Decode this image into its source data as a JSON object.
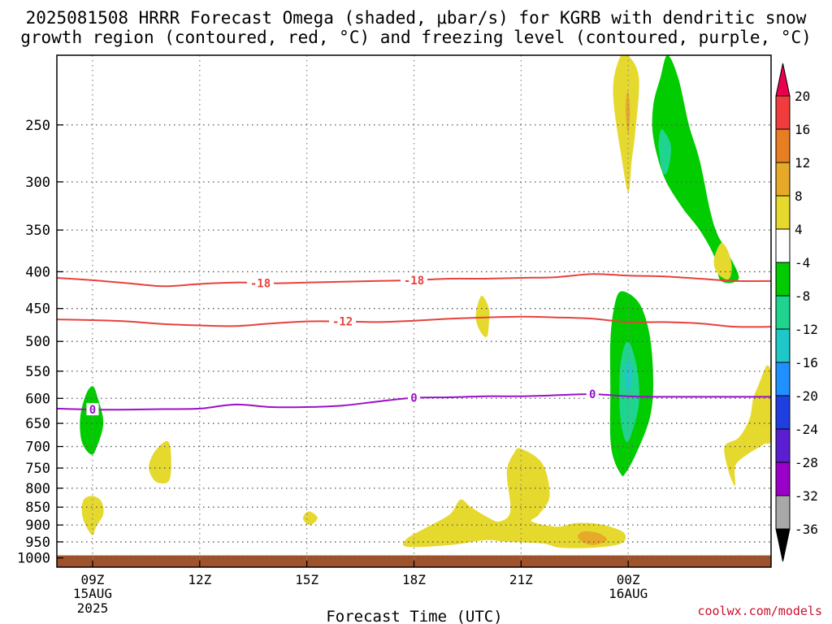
{
  "title_line1": "2025081508 HRRR Forecast Omega (shaded, μbar/s) for KGRB with dendritic snow",
  "title_line2": "growth region (contoured, red, °C) and freezing level (contoured, purple, °C)",
  "credit": "coolwx.com/models",
  "chart_data": {
    "type": "time-height cross-section (filled contour + contour lines)",
    "title": "2025081508 HRRR Forecast Omega (shaded, μbar/s) for KGRB with dendritic snow growth region (contoured, red, °C) and freezing level (contoured, purple, °C)",
    "xlabel": "Forecast Time (UTC)",
    "ylabel": "",
    "x_range_hours_utc": [
      8,
      28
    ],
    "y_range_hPa": [
      200,
      1030
    ],
    "y_scale": "log-pressure",
    "grid": "dotted",
    "x_ticks": [
      {
        "hour": 9,
        "label": "09Z",
        "sub1": "15AUG",
        "sub2": "2025"
      },
      {
        "hour": 12,
        "label": "12Z",
        "sub1": "",
        "sub2": ""
      },
      {
        "hour": 15,
        "label": "15Z",
        "sub1": "",
        "sub2": ""
      },
      {
        "hour": 18,
        "label": "18Z",
        "sub1": "",
        "sub2": ""
      },
      {
        "hour": 21,
        "label": "21Z",
        "sub1": "",
        "sub2": ""
      },
      {
        "hour": 24,
        "label": "00Z",
        "sub1": "16AUG",
        "sub2": ""
      }
    ],
    "y_ticks": [
      250,
      300,
      350,
      400,
      450,
      500,
      550,
      600,
      650,
      700,
      750,
      800,
      850,
      900,
      950,
      1000
    ],
    "surface_hPa": 992,
    "surface_color": "#a0522d",
    "colorbar": {
      "labels": [
        "20",
        "16",
        "12",
        "8",
        "4",
        "-4",
        "-8",
        "-12",
        "-16",
        "-20",
        "-24",
        "-28",
        "-32",
        "-36"
      ],
      "colors": [
        "#e8004f",
        "#f03c3c",
        "#e87e22",
        "#e6a929",
        "#e6d92e",
        "#ffffff",
        "#00cc00",
        "#1ed48f",
        "#1fc8c8",
        "#1e90ff",
        "#1f3fe0",
        "#5a1fd0",
        "#9a00c8",
        "#a8a8a8",
        "#000000"
      ]
    },
    "contour_lines": [
      {
        "name": "-18",
        "color": "#e8413c",
        "points": [
          [
            8,
            408
          ],
          [
            9,
            411
          ],
          [
            10,
            415
          ],
          [
            11,
            419
          ],
          [
            12,
            416
          ],
          [
            13,
            414
          ],
          [
            14,
            415
          ],
          [
            15,
            414
          ],
          [
            16,
            413
          ],
          [
            17,
            412
          ],
          [
            18,
            411
          ],
          [
            19,
            409
          ],
          [
            20,
            409
          ],
          [
            21,
            408
          ],
          [
            22,
            407
          ],
          [
            23,
            403
          ],
          [
            24,
            405
          ],
          [
            25,
            406
          ],
          [
            26,
            409
          ],
          [
            27,
            412
          ]
        ],
        "labels": [
          {
            "x": 13.7,
            "text": "-18"
          },
          {
            "x": 18.0,
            "text": "-18"
          }
        ]
      },
      {
        "name": "-12",
        "color": "#e8413c",
        "points": [
          [
            8,
            466
          ],
          [
            9,
            467
          ],
          [
            10,
            469
          ],
          [
            11,
            473
          ],
          [
            12,
            475
          ],
          [
            13,
            476
          ],
          [
            14,
            472
          ],
          [
            15,
            469
          ],
          [
            16,
            469
          ],
          [
            17,
            470
          ],
          [
            18,
            468
          ],
          [
            19,
            465
          ],
          [
            20,
            463
          ],
          [
            21,
            462
          ],
          [
            22,
            463
          ],
          [
            23,
            465
          ],
          [
            24,
            470
          ],
          [
            25,
            470
          ],
          [
            26,
            472
          ],
          [
            27,
            477
          ]
        ],
        "labels": [
          {
            "x": 16.0,
            "text": "-12"
          }
        ]
      },
      {
        "name": "0",
        "color": "#9a10c8",
        "points": [
          [
            8,
            620
          ],
          [
            9,
            622
          ],
          [
            10,
            622
          ],
          [
            11,
            621
          ],
          [
            12,
            620
          ],
          [
            13,
            612
          ],
          [
            14,
            617
          ],
          [
            15,
            617
          ],
          [
            16,
            614
          ],
          [
            17,
            606
          ],
          [
            18,
            599
          ],
          [
            19,
            598
          ],
          [
            20,
            596
          ],
          [
            21,
            596
          ],
          [
            22,
            594
          ],
          [
            23,
            592
          ],
          [
            24,
            596
          ],
          [
            25,
            597
          ],
          [
            26,
            597
          ],
          [
            27,
            597
          ]
        ],
        "labels": [
          {
            "x": 9.0,
            "text": "0"
          },
          {
            "x": 18.0,
            "text": "0"
          },
          {
            "x": 23.0,
            "text": "0"
          }
        ]
      }
    ],
    "shaded_regions": [
      {
        "value": "4 to 8",
        "color": "#e6d92e",
        "points": [
          [
            24.0,
            200
          ],
          [
            24.3,
            215
          ],
          [
            24.2,
            255
          ],
          [
            24.1,
            280
          ],
          [
            24.0,
            310
          ],
          [
            23.8,
            275
          ],
          [
            23.6,
            235
          ],
          [
            23.6,
            215
          ],
          [
            23.8,
            200
          ]
        ]
      },
      {
        "value": "8 to 12",
        "color": "#e6a929",
        "points": [
          [
            24.0,
            225
          ],
          [
            24.05,
            240
          ],
          [
            24.0,
            258
          ],
          [
            23.93,
            240
          ],
          [
            23.95,
            228
          ]
        ]
      },
      {
        "value": "-8 to -4",
        "color": "#00cc00",
        "points": [
          [
            25.1,
            200
          ],
          [
            25.4,
            215
          ],
          [
            25.7,
            250
          ],
          [
            26.0,
            280
          ],
          [
            26.3,
            330
          ],
          [
            26.5,
            355
          ],
          [
            26.7,
            370
          ],
          [
            27.1,
            408
          ],
          [
            26.6,
            412
          ],
          [
            26.4,
            380
          ],
          [
            26.0,
            350
          ],
          [
            25.5,
            325
          ],
          [
            25.0,
            295
          ],
          [
            24.7,
            260
          ],
          [
            24.7,
            235
          ],
          [
            24.9,
            215
          ]
        ]
      },
      {
        "value": "-12 to -8",
        "color": "#1ed48f",
        "points": [
          [
            25.0,
            255
          ],
          [
            25.2,
            268
          ],
          [
            25.1,
            290
          ],
          [
            24.95,
            290
          ],
          [
            24.85,
            268
          ],
          [
            24.9,
            255
          ]
        ]
      },
      {
        "value": "4 to 8",
        "color": "#e6d92e",
        "points": [
          [
            26.6,
            365
          ],
          [
            26.8,
            375
          ],
          [
            26.9,
            395
          ],
          [
            26.8,
            410
          ],
          [
            26.5,
            402
          ],
          [
            26.4,
            385
          ]
        ]
      },
      {
        "value": "-8 to -4",
        "color": "#00cc00",
        "points": [
          [
            23.8,
            426
          ],
          [
            24.3,
            442
          ],
          [
            24.6,
            490
          ],
          [
            24.7,
            570
          ],
          [
            24.6,
            640
          ],
          [
            24.2,
            720
          ],
          [
            23.9,
            765
          ],
          [
            23.8,
            765
          ],
          [
            23.6,
            730
          ],
          [
            23.5,
            680
          ],
          [
            23.5,
            580
          ],
          [
            23.5,
            500
          ],
          [
            23.6,
            450
          ]
        ]
      },
      {
        "value": "-12 to -8",
        "color": "#1ed48f",
        "points": [
          [
            24.0,
            500
          ],
          [
            24.25,
            545
          ],
          [
            24.3,
            610
          ],
          [
            24.1,
            670
          ],
          [
            23.95,
            690
          ],
          [
            23.8,
            650
          ],
          [
            23.75,
            590
          ],
          [
            23.8,
            530
          ]
        ]
      },
      {
        "value": "-16 to -12",
        "color": "#1fc8c8",
        "points": [
          [
            24.0,
            530
          ],
          [
            24.12,
            560
          ],
          [
            24.0,
            590
          ],
          [
            23.9,
            560
          ]
        ]
      },
      {
        "value": "-8 to -4",
        "color": "#00cc00",
        "points": [
          [
            9.0,
            577
          ],
          [
            9.15,
            600
          ],
          [
            9.3,
            650
          ],
          [
            9.1,
            705
          ],
          [
            8.95,
            718
          ],
          [
            8.7,
            690
          ],
          [
            8.65,
            640
          ],
          [
            8.8,
            595
          ]
        ]
      },
      {
        "value": "4 to 8",
        "color": "#e6d92e",
        "points": [
          [
            19.9,
            432
          ],
          [
            20.1,
            450
          ],
          [
            20.1,
            470
          ],
          [
            20.05,
            492
          ],
          [
            19.9,
            488
          ],
          [
            19.75,
            470
          ],
          [
            19.75,
            452
          ]
        ]
      },
      {
        "value": "4 to 8",
        "color": "#e6d92e",
        "points": [
          [
            27.9,
            540
          ],
          [
            28.0,
            560
          ],
          [
            28.0,
            680
          ],
          [
            27.8,
            695
          ],
          [
            27.3,
            720
          ],
          [
            27.0,
            745
          ],
          [
            27.0,
            790
          ],
          [
            26.95,
            790
          ],
          [
            26.8,
            755
          ],
          [
            26.7,
            700
          ],
          [
            27.1,
            680
          ],
          [
            27.4,
            640
          ],
          [
            27.5,
            600
          ],
          [
            27.65,
            575
          ],
          [
            27.8,
            550
          ]
        ]
      },
      {
        "value": "4 to 8",
        "color": "#e6d92e",
        "points": [
          [
            11.1,
            688
          ],
          [
            11.2,
            720
          ],
          [
            11.15,
            780
          ],
          [
            10.8,
            785
          ],
          [
            10.6,
            760
          ],
          [
            10.6,
            735
          ],
          [
            10.8,
            705
          ]
        ]
      },
      {
        "value": "4 to 8",
        "color": "#e6d92e",
        "points": [
          [
            9.0,
            820
          ],
          [
            9.25,
            835
          ],
          [
            9.3,
            870
          ],
          [
            9.1,
            905
          ],
          [
            9.0,
            930
          ],
          [
            8.8,
            900
          ],
          [
            8.7,
            865
          ],
          [
            8.75,
            830
          ]
        ]
      },
      {
        "value": "4 to 8",
        "color": "#e6d92e",
        "points": [
          [
            15.1,
            862
          ],
          [
            15.3,
            880
          ],
          [
            15.1,
            900
          ],
          [
            14.9,
            885
          ],
          [
            14.95,
            868
          ]
        ]
      },
      {
        "value": "4 to 8",
        "color": "#e6d92e",
        "points": [
          [
            21.0,
            705
          ],
          [
            21.6,
            740
          ],
          [
            21.8,
            820
          ],
          [
            21.5,
            870
          ],
          [
            21.3,
            890
          ],
          [
            22.0,
            905
          ],
          [
            22.5,
            895
          ],
          [
            23.0,
            895
          ],
          [
            23.5,
            905
          ],
          [
            23.9,
            925
          ],
          [
            23.8,
            955
          ],
          [
            23.0,
            968
          ],
          [
            22.1,
            968
          ],
          [
            21.6,
            955
          ],
          [
            20.6,
            950
          ],
          [
            20.0,
            945
          ],
          [
            19.0,
            960
          ],
          [
            17.8,
            965
          ],
          [
            17.8,
            940
          ],
          [
            18.3,
            910
          ],
          [
            19.0,
            870
          ],
          [
            19.3,
            830
          ],
          [
            19.6,
            850
          ],
          [
            20.1,
            880
          ],
          [
            20.4,
            890
          ],
          [
            20.7,
            860
          ],
          [
            20.6,
            760
          ],
          [
            20.8,
            715
          ]
        ]
      },
      {
        "value": "8 to 12",
        "color": "#e6a929",
        "points": [
          [
            22.8,
            918
          ],
          [
            23.2,
            925
          ],
          [
            23.4,
            945
          ],
          [
            23.0,
            960
          ],
          [
            22.65,
            945
          ],
          [
            22.6,
            928
          ]
        ]
      }
    ]
  }
}
